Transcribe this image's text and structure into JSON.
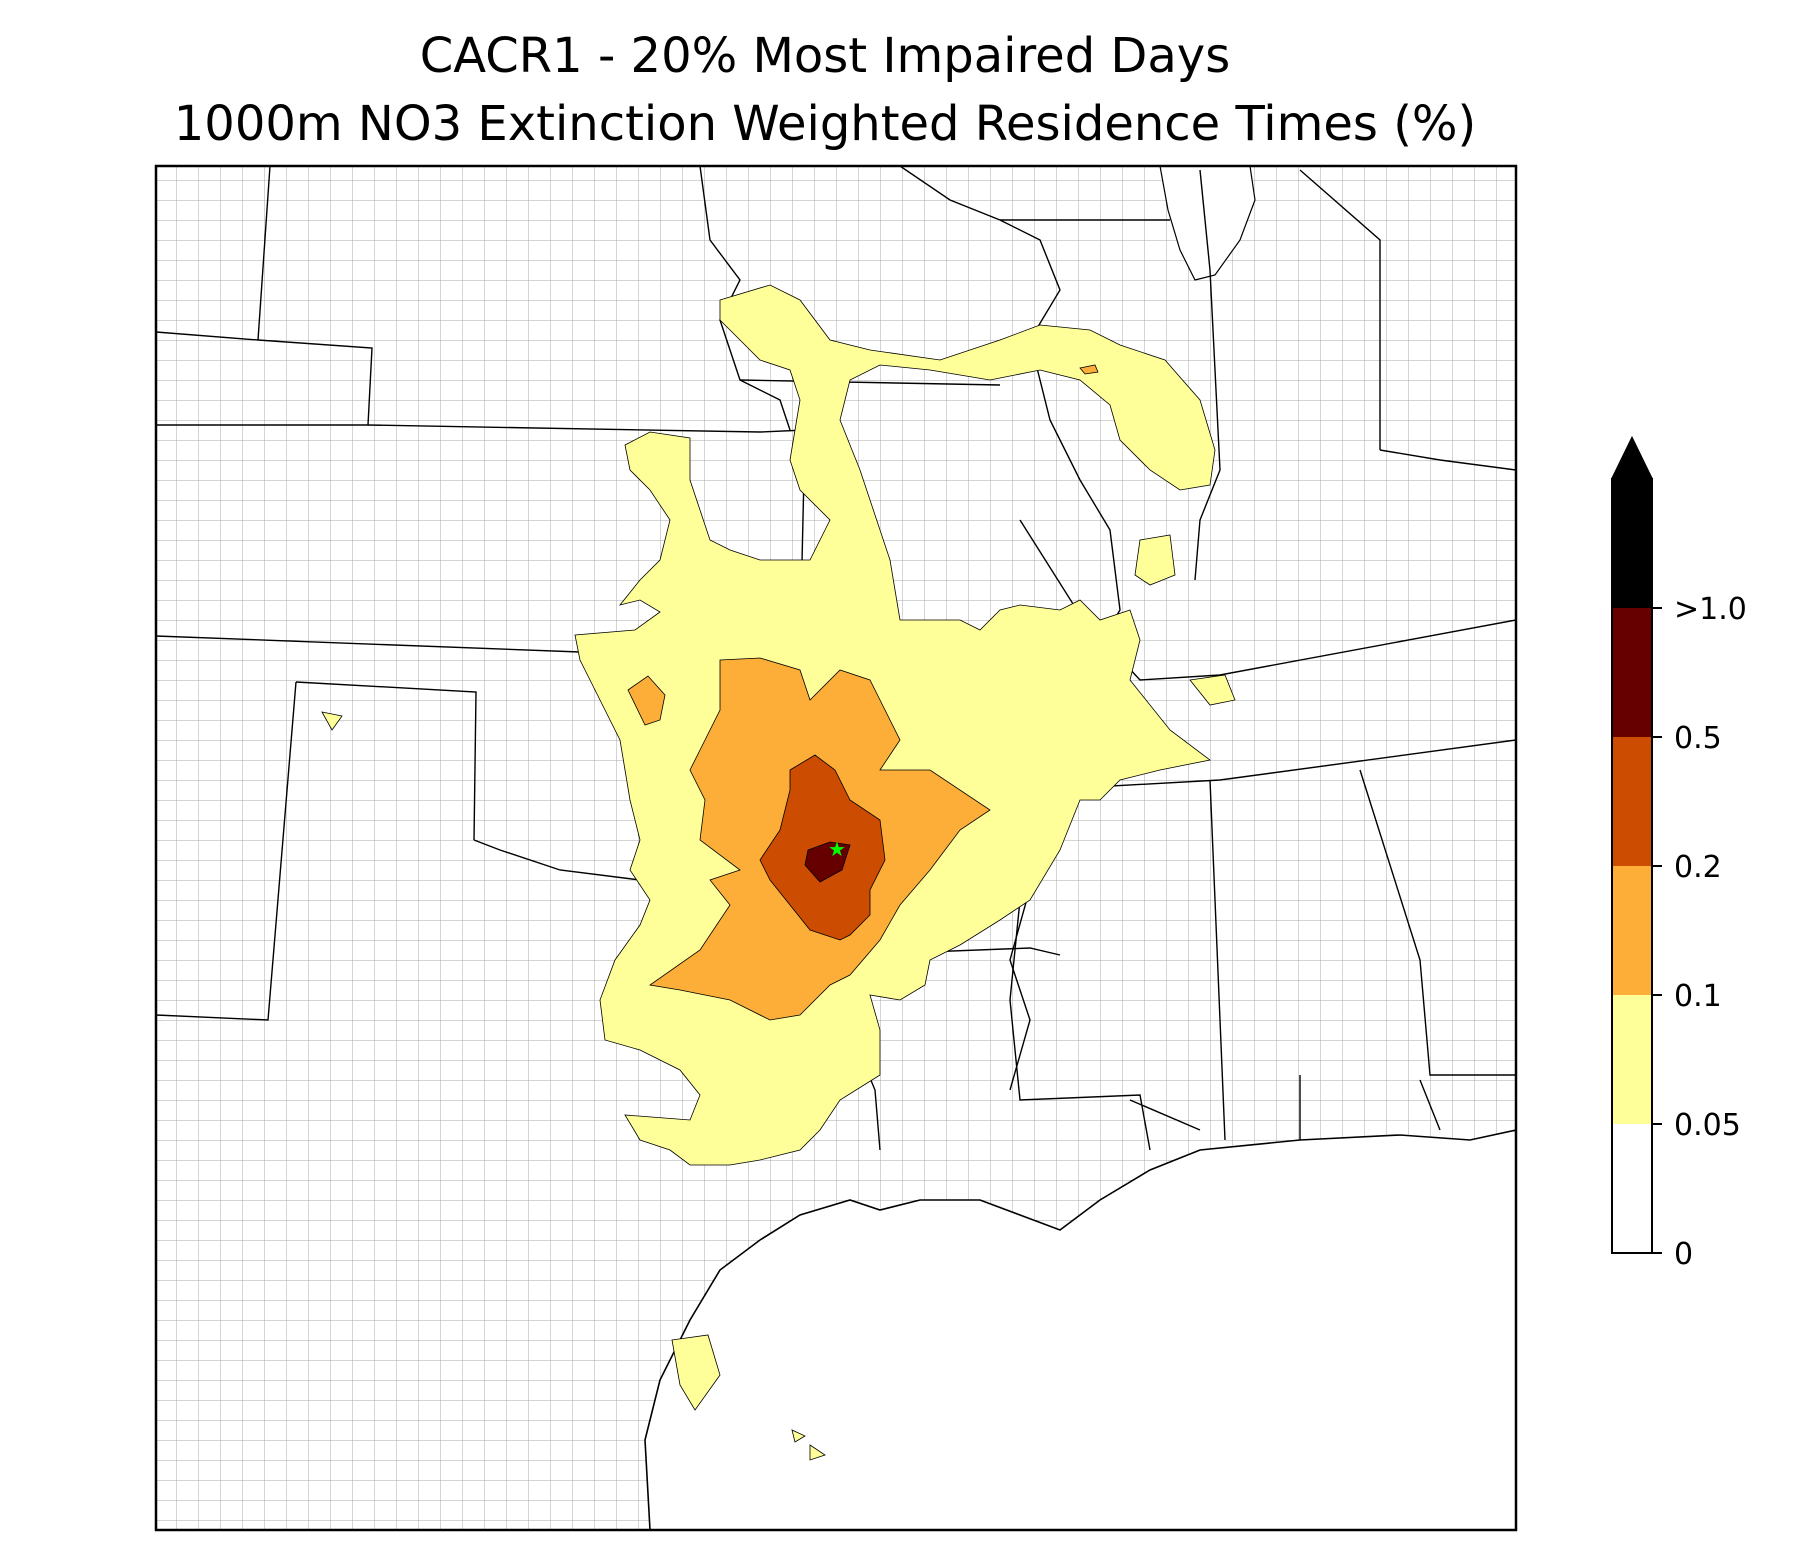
{
  "title": {
    "line1": "CACR1 - 20% Most Impaired Days",
    "line2": "1000m NO3 Extinction Weighted Residence Times (%)"
  },
  "colorbar": {
    "levels": [
      {
        "label": "0",
        "color": "#ffffff"
      },
      {
        "label": "0.05",
        "color": "#ffff99"
      },
      {
        "label": "0.1",
        "color": "#fdae38"
      },
      {
        "label": "0.2",
        "color": "#cc4c02"
      },
      {
        "label": "0.5",
        "color": "#660000"
      },
      {
        "label": ">1.0",
        "color": "#000000"
      }
    ],
    "extend": "max"
  },
  "map": {
    "site_marker_color": "#00ff00",
    "region": "South-central United States with county boundaries"
  }
}
